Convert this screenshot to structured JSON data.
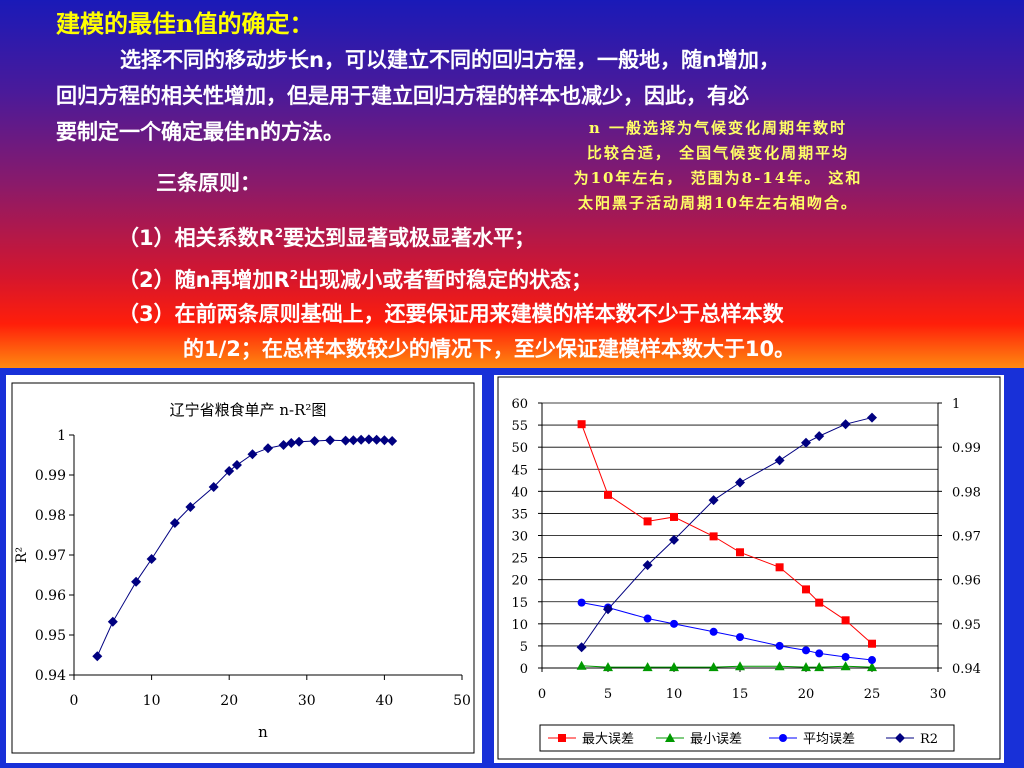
{
  "slide": {
    "title": "建模的最佳n值的确定：",
    "para_line1": "选择不同的移动步长n，可以建立不同的回归方程，一般地，随n增加，",
    "para_line2": "回归方程的相关性增加，但是用于建立回归方程的样本也减少，因此，有必",
    "para_line3": "要制定一个确定最佳n的方法。",
    "note": [
      "n 一般选择为气候变化周期年数时",
      "比较合适， 全国气候变化周期平均",
      "为10年左右， 范围为8-14年。 这和",
      "太阳黑子活动周期10年左右相吻合。"
    ],
    "principles_heading": "三条原则：",
    "rule1_prefix": "（1）相关系数R",
    "rule1_sup": "2",
    "rule1_suffix": "要达到显著或极显著水平；",
    "rule2_prefix": "（2）随n再增加R",
    "rule2_sup": "2",
    "rule2_suffix": "出现减小或者暂时稳定的状态；",
    "rule3_line1": "（3）在前两条原则基础上，还要保证用来建模的样本数不少于总样本数",
    "rule3_line2": "的1/2；在总样本数较少的情况下，至少保证建模样本数大于10。"
  },
  "colors": {
    "title": "#ffff00",
    "note": "#ffff66",
    "red": "#ff0000",
    "green": "#009900",
    "blue": "#0000ff",
    "navy": "#000080"
  },
  "chart_data": [
    {
      "type": "line",
      "title": "辽宁省粮食单产 n-R²图",
      "xlabel": "n",
      "ylabel": "R²",
      "xlim": [
        0,
        50
      ],
      "ylim": [
        0.94,
        1
      ],
      "x_ticks": [
        "0",
        "10",
        "20",
        "30",
        "40",
        "50"
      ],
      "y_ticks": [
        "0.94",
        "0.95",
        "0.96",
        "0.97",
        "0.98",
        "0.99",
        "1"
      ],
      "series": [
        {
          "name": "",
          "x": [
            3,
            5,
            8,
            10,
            13,
            15,
            18,
            20,
            21,
            23,
            25,
            27,
            28,
            29,
            31,
            33,
            35,
            36,
            37,
            38,
            39,
            40,
            41
          ],
          "y": [
            0.9447,
            0.9533,
            0.9633,
            0.969,
            0.978,
            0.982,
            0.987,
            0.991,
            0.9925,
            0.9952,
            0.9967,
            0.9975,
            0.998,
            0.9983,
            0.9985,
            0.9987,
            0.9986,
            0.9987,
            0.9988,
            0.9989,
            0.9988,
            0.9987,
            0.9985
          ]
        }
      ]
    },
    {
      "type": "line",
      "xlim": [
        0,
        30
      ],
      "ylim_left": [
        0,
        60
      ],
      "ylim_right": [
        0.94,
        1
      ],
      "x_ticks": [
        "0",
        "5",
        "10",
        "15",
        "20",
        "25",
        "30"
      ],
      "y_ticks_left": [
        "0",
        "5",
        "10",
        "15",
        "20",
        "25",
        "30",
        "35",
        "40",
        "45",
        "50",
        "55",
        "60"
      ],
      "y_ticks_right": [
        "0.94",
        "0.95",
        "0.96",
        "0.97",
        "0.98",
        "0.99",
        "1"
      ],
      "legend_position": "bottom",
      "series": [
        {
          "name": "最大误差",
          "axis": "left",
          "marker": "square",
          "x": [
            3,
            5,
            8,
            10,
            13,
            15,
            18,
            20,
            21,
            23,
            25
          ],
          "y": [
            55.2,
            39.2,
            33.2,
            34.2,
            29.8,
            26.2,
            22.8,
            17.8,
            14.8,
            10.8,
            5.5
          ]
        },
        {
          "name": "最小误差",
          "axis": "left",
          "marker": "triangle",
          "x": [
            3,
            5,
            8,
            10,
            13,
            15,
            18,
            20,
            21,
            23,
            25
          ],
          "y": [
            0.5,
            0.2,
            0.2,
            0.2,
            0.2,
            0.4,
            0.4,
            0.2,
            0.2,
            0.4,
            0.2
          ]
        },
        {
          "name": "平均误差",
          "axis": "left",
          "marker": "circle",
          "x": [
            3,
            5,
            8,
            10,
            13,
            15,
            18,
            20,
            21,
            23,
            25
          ],
          "y": [
            14.8,
            13.7,
            11.2,
            10.0,
            8.2,
            7.0,
            5.0,
            4.0,
            3.3,
            2.5,
            1.8
          ]
        },
        {
          "name": "R2",
          "axis": "right",
          "marker": "diamond",
          "x": [
            3,
            5,
            8,
            10,
            13,
            15,
            18,
            20,
            21,
            23,
            25
          ],
          "y": [
            0.9447,
            0.9533,
            0.9633,
            0.969,
            0.978,
            0.982,
            0.987,
            0.991,
            0.9925,
            0.9952,
            0.9967
          ]
        }
      ]
    }
  ]
}
